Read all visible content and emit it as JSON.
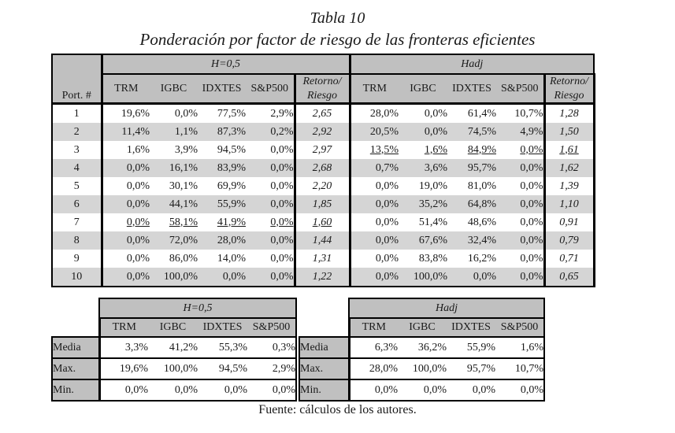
{
  "page": {
    "title": "Tabla 10",
    "subtitle": "Ponderación por factor de riesgo de las fronteras eficientes",
    "source_note": "Fuente: cálculos de los autores."
  },
  "colors": {
    "header_bg": "#c0c0c0",
    "alt_row_bg": "#d5d5d5",
    "border_c": "#000000",
    "page_bg": "#ffffff"
  },
  "factor_headers": [
    "TRM",
    "IGBC",
    "IDXTES",
    "S&P500"
  ],
  "main_table": {
    "port_header": "Port. #",
    "groups": [
      {
        "label": "H=0,5"
      },
      {
        "label": "Hadj"
      }
    ],
    "ratio_header": [
      "Retorno/",
      "Riesgo"
    ],
    "rows": [
      {
        "port": "1",
        "h05": [
          "19,6%",
          "0,0%",
          "77,5%",
          "2,9%"
        ],
        "h05_ratio": "2,65",
        "h05_emph": false,
        "hadj": [
          "28,0%",
          "0,0%",
          "61,4%",
          "10,7%"
        ],
        "hadj_ratio": "1,28",
        "hadj_emph": false
      },
      {
        "port": "2",
        "h05": [
          "11,4%",
          "1,1%",
          "87,3%",
          "0,2%"
        ],
        "h05_ratio": "2,92",
        "h05_emph": false,
        "hadj": [
          "20,5%",
          "0,0%",
          "74,5%",
          "4,9%"
        ],
        "hadj_ratio": "1,50",
        "hadj_emph": false
      },
      {
        "port": "3",
        "h05": [
          "1,6%",
          "3,9%",
          "94,5%",
          "0,0%"
        ],
        "h05_ratio": "2,97",
        "h05_emph": false,
        "hadj": [
          "13,5%",
          "1,6%",
          "84,9%",
          "0,0%"
        ],
        "hadj_ratio": "1,61",
        "hadj_emph": true
      },
      {
        "port": "4",
        "h05": [
          "0,0%",
          "16,1%",
          "83,9%",
          "0,0%"
        ],
        "h05_ratio": "2,68",
        "h05_emph": false,
        "hadj": [
          "0,7%",
          "3,6%",
          "95,7%",
          "0,0%"
        ],
        "hadj_ratio": "1,62",
        "hadj_emph": false
      },
      {
        "port": "5",
        "h05": [
          "0,0%",
          "30,1%",
          "69,9%",
          "0,0%"
        ],
        "h05_ratio": "2,20",
        "h05_emph": false,
        "hadj": [
          "0,0%",
          "19,0%",
          "81,0%",
          "0,0%"
        ],
        "hadj_ratio": "1,39",
        "hadj_emph": false
      },
      {
        "port": "6",
        "h05": [
          "0,0%",
          "44,1%",
          "55,9%",
          "0,0%"
        ],
        "h05_ratio": "1,85",
        "h05_emph": false,
        "hadj": [
          "0,0%",
          "35,2%",
          "64,8%",
          "0,0%"
        ],
        "hadj_ratio": "1,10",
        "hadj_emph": false
      },
      {
        "port": "7",
        "h05": [
          "0,0%",
          "58,1%",
          "41,9%",
          "0,0%"
        ],
        "h05_ratio": "1,60",
        "h05_emph": true,
        "hadj": [
          "0,0%",
          "51,4%",
          "48,6%",
          "0,0%"
        ],
        "hadj_ratio": "0,91",
        "hadj_emph": false
      },
      {
        "port": "8",
        "h05": [
          "0,0%",
          "72,0%",
          "28,0%",
          "0,0%"
        ],
        "h05_ratio": "1,44",
        "h05_emph": false,
        "hadj": [
          "0,0%",
          "67,6%",
          "32,4%",
          "0,0%"
        ],
        "hadj_ratio": "0,79",
        "hadj_emph": false
      },
      {
        "port": "9",
        "h05": [
          "0,0%",
          "86,0%",
          "14,0%",
          "0,0%"
        ],
        "h05_ratio": "1,31",
        "h05_emph": false,
        "hadj": [
          "0,0%",
          "83,8%",
          "16,2%",
          "0,0%"
        ],
        "hadj_ratio": "0,71",
        "hadj_emph": false
      },
      {
        "port": "10",
        "h05": [
          "0,0%",
          "100,0%",
          "0,0%",
          "0,0%"
        ],
        "h05_ratio": "1,22",
        "h05_emph": false,
        "hadj": [
          "0,0%",
          "100,0%",
          "0,0%",
          "0,0%"
        ],
        "hadj_ratio": "0,65",
        "hadj_emph": false
      }
    ]
  },
  "summary_tables": [
    {
      "group_label": "H=0,5",
      "rows": [
        {
          "label": "Media",
          "values": [
            "3,3%",
            "41,2%",
            "55,3%",
            "0,3%"
          ]
        },
        {
          "label": "Max.",
          "values": [
            "19,6%",
            "100,0%",
            "94,5%",
            "2,9%"
          ]
        },
        {
          "label": "Min.",
          "values": [
            "0,0%",
            "0,0%",
            "0,0%",
            "0,0%"
          ]
        }
      ]
    },
    {
      "group_label": "Hadj",
      "rows": [
        {
          "label": "Media",
          "values": [
            "6,3%",
            "36,2%",
            "55,9%",
            "1,6%"
          ]
        },
        {
          "label": "Max.",
          "values": [
            "28,0%",
            "100,0%",
            "95,7%",
            "10,7%"
          ]
        },
        {
          "label": "Min.",
          "values": [
            "0,0%",
            "0,0%",
            "0,0%",
            "0,0%"
          ]
        }
      ]
    }
  ]
}
